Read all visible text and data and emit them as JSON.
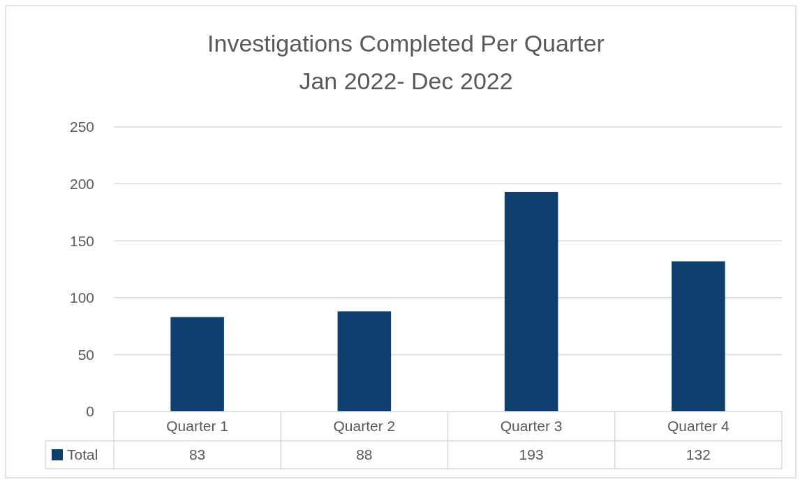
{
  "chart_data": {
    "type": "bar",
    "title": "Investigations Completed Per Quarter",
    "subtitle": "Jan 2022- Dec 2022",
    "categories": [
      "Quarter 1",
      "Quarter 2",
      "Quarter 3",
      "Quarter 4"
    ],
    "series": [
      {
        "name": "Total",
        "color": "#0e3f6e",
        "values": [
          83,
          88,
          193,
          132
        ]
      }
    ],
    "ylim": [
      0,
      250
    ],
    "yticks": [
      0,
      50,
      100,
      150,
      200,
      250
    ],
    "grid": "y",
    "data_labels": true,
    "legend": "bottom"
  }
}
